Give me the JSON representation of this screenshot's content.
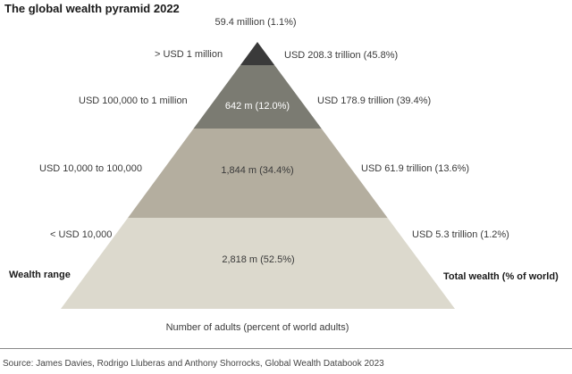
{
  "chart_data": {
    "type": "pyramid",
    "title": "The global wealth pyramid 2022",
    "left_axis_title": "Wealth range",
    "right_axis_title": "Total wealth (% of world)",
    "bottom_label": "Number of adults (percent of world adults)",
    "tiers": [
      {
        "range": "> USD 1 million",
        "adults": "59.4 million (1.1%)",
        "adults_pct": 1.1,
        "wealth": "USD 208.3 trillion (45.8%)",
        "wealth_trillion": 208.3,
        "wealth_pct": 45.8,
        "color": "#3a3a3a"
      },
      {
        "range": "USD 100,000  to 1 million",
        "adults": "642 m (12.0%)",
        "adults_pct": 12.0,
        "wealth": "USD 178.9 trillion (39.4%)",
        "wealth_trillion": 178.9,
        "wealth_pct": 39.4,
        "color": "#7b7b72"
      },
      {
        "range": "USD 10,000  to 100,000",
        "adults": "1,844 m (34.4%)",
        "adults_pct": 34.4,
        "wealth": "USD 61.9 trillion (13.6%)",
        "wealth_trillion": 61.9,
        "wealth_pct": 13.6,
        "color": "#b4ae9f"
      },
      {
        "range": "< USD 10,000",
        "adults": "2,818 m (52.5%)",
        "adults_pct": 52.5,
        "wealth": "USD 5.3 trillion (1.2%)",
        "wealth_trillion": 5.3,
        "wealth_pct": 1.2,
        "color": "#dcd9cd"
      }
    ],
    "source": "Source: James Davies, Rodrigo Lluberas and Anthony Shorrocks, Global Wealth Databook 2023"
  }
}
